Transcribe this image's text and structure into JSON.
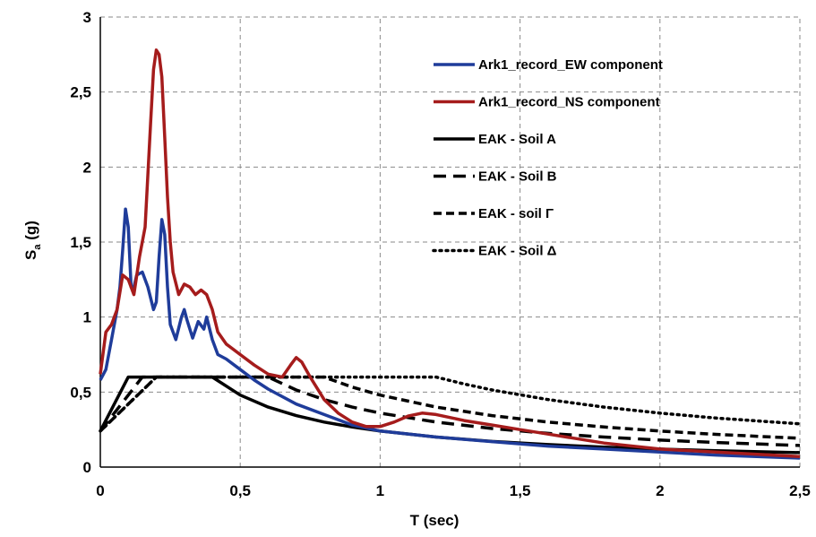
{
  "chart_data": {
    "type": "line",
    "title": "",
    "xlabel": "T (sec)",
    "ylabel": {
      "main": "S",
      "sub": "a",
      "unit": " (g)"
    },
    "xlim": [
      0,
      2.5
    ],
    "ylim": [
      0,
      3
    ],
    "x_ticks": [
      {
        "v": 0,
        "label": "0"
      },
      {
        "v": 0.5,
        "label": "0,5"
      },
      {
        "v": 1,
        "label": "1"
      },
      {
        "v": 1.5,
        "label": "1,5"
      },
      {
        "v": 2,
        "label": "2"
      },
      {
        "v": 2.5,
        "label": "2,5"
      }
    ],
    "y_ticks": [
      {
        "v": 0,
        "label": "0"
      },
      {
        "v": 0.5,
        "label": "0,5"
      },
      {
        "v": 1,
        "label": "1"
      },
      {
        "v": 1.5,
        "label": "1,5"
      },
      {
        "v": 2,
        "label": "2"
      },
      {
        "v": 2.5,
        "label": "2,5"
      },
      {
        "v": 3,
        "label": "3"
      }
    ],
    "grid": true,
    "grid_style": "dashed",
    "legend_position": "top-right",
    "series": [
      {
        "name": "Ark1_record_EW component",
        "color": "#1f3c9a",
        "style": "solid",
        "x": [
          0,
          0.02,
          0.04,
          0.06,
          0.07,
          0.08,
          0.09,
          0.1,
          0.11,
          0.12,
          0.13,
          0.15,
          0.17,
          0.19,
          0.2,
          0.21,
          0.22,
          0.23,
          0.24,
          0.25,
          0.27,
          0.29,
          0.3,
          0.31,
          0.33,
          0.35,
          0.37,
          0.38,
          0.4,
          0.42,
          0.45,
          0.5,
          0.55,
          0.6,
          0.7,
          0.8,
          0.9,
          1.0,
          1.2,
          1.4,
          1.6,
          1.8,
          2.0,
          2.2,
          2.5
        ],
        "y": [
          0.58,
          0.65,
          0.85,
          1.05,
          1.2,
          1.45,
          1.72,
          1.6,
          1.2,
          1.2,
          1.28,
          1.3,
          1.2,
          1.05,
          1.1,
          1.4,
          1.65,
          1.55,
          1.2,
          0.95,
          0.85,
          1.0,
          1.05,
          0.98,
          0.86,
          0.97,
          0.92,
          1.0,
          0.85,
          0.75,
          0.72,
          0.65,
          0.58,
          0.52,
          0.42,
          0.35,
          0.28,
          0.24,
          0.2,
          0.17,
          0.14,
          0.12,
          0.1,
          0.08,
          0.06
        ]
      },
      {
        "name": "Ark1_record_NS component",
        "color": "#a51c1c",
        "style": "solid",
        "x": [
          0,
          0.02,
          0.04,
          0.06,
          0.08,
          0.1,
          0.12,
          0.14,
          0.16,
          0.18,
          0.19,
          0.2,
          0.21,
          0.22,
          0.23,
          0.24,
          0.25,
          0.26,
          0.28,
          0.3,
          0.32,
          0.34,
          0.36,
          0.38,
          0.4,
          0.42,
          0.45,
          0.5,
          0.55,
          0.6,
          0.65,
          0.68,
          0.7,
          0.72,
          0.75,
          0.8,
          0.85,
          0.9,
          0.95,
          1.0,
          1.05,
          1.1,
          1.15,
          1.2,
          1.3,
          1.4,
          1.5,
          1.6,
          1.7,
          1.8,
          2.0,
          2.2,
          2.5
        ],
        "y": [
          0.62,
          0.9,
          0.95,
          1.05,
          1.28,
          1.25,
          1.15,
          1.4,
          1.6,
          2.3,
          2.65,
          2.78,
          2.75,
          2.6,
          2.2,
          1.8,
          1.5,
          1.3,
          1.15,
          1.22,
          1.2,
          1.15,
          1.18,
          1.15,
          1.05,
          0.9,
          0.82,
          0.75,
          0.68,
          0.62,
          0.6,
          0.68,
          0.73,
          0.7,
          0.6,
          0.45,
          0.36,
          0.3,
          0.27,
          0.27,
          0.3,
          0.34,
          0.36,
          0.35,
          0.31,
          0.28,
          0.25,
          0.22,
          0.19,
          0.16,
          0.12,
          0.1,
          0.07
        ]
      },
      {
        "name": "EAK - Soil A",
        "color": "#000000",
        "style": "solid",
        "x": [
          0,
          0.1,
          0.4,
          0.5,
          0.6,
          0.7,
          0.8,
          0.9,
          1.0,
          1.2,
          1.4,
          1.6,
          1.8,
          2.0,
          2.2,
          2.5
        ],
        "y": [
          0.24,
          0.6,
          0.6,
          0.48,
          0.4,
          0.343,
          0.3,
          0.267,
          0.24,
          0.2,
          0.171,
          0.15,
          0.133,
          0.12,
          0.109,
          0.096
        ]
      },
      {
        "name": "EAK - Soil B",
        "color": "#000000",
        "style": "dashed",
        "x": [
          0,
          0.15,
          0.6,
          0.7,
          0.8,
          0.9,
          1.0,
          1.2,
          1.4,
          1.6,
          1.8,
          2.0,
          2.2,
          2.5
        ],
        "y": [
          0.24,
          0.6,
          0.6,
          0.514,
          0.45,
          0.4,
          0.36,
          0.3,
          0.257,
          0.225,
          0.2,
          0.18,
          0.164,
          0.144
        ]
      },
      {
        "name": "EAK - soil Γ",
        "color": "#000000",
        "style": "dash-medium",
        "x": [
          0,
          0.2,
          0.8,
          0.9,
          1.0,
          1.2,
          1.4,
          1.6,
          1.8,
          2.0,
          2.2,
          2.5
        ],
        "y": [
          0.24,
          0.6,
          0.6,
          0.533,
          0.48,
          0.4,
          0.343,
          0.3,
          0.267,
          0.24,
          0.218,
          0.192
        ]
      },
      {
        "name": "EAK - Soil Δ",
        "color": "#000000",
        "style": "dotted",
        "x": [
          0,
          0.2,
          1.2,
          1.3,
          1.4,
          1.6,
          1.8,
          2.0,
          2.2,
          2.5
        ],
        "y": [
          0.24,
          0.6,
          0.6,
          0.554,
          0.514,
          0.45,
          0.4,
          0.36,
          0.327,
          0.288
        ]
      }
    ]
  }
}
